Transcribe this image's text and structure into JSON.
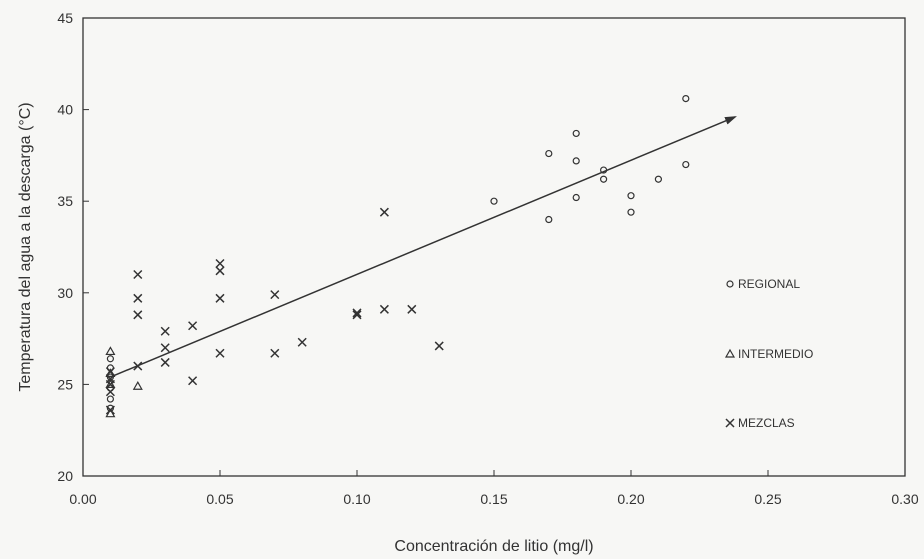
{
  "chart_data": {
    "type": "scatter",
    "xlabel": "Concentración de litio (mg/l)",
    "ylabel": "Temperatura del agua a la descarga (°C)",
    "xlim": [
      0,
      0.3
    ],
    "ylim": [
      20,
      45
    ],
    "x_ticks": [
      "0.00",
      "0.05",
      "0.10",
      "0.15",
      "0.20",
      "0.25",
      "0.30"
    ],
    "y_ticks": [
      "20",
      "25",
      "30",
      "35",
      "40",
      "45"
    ],
    "grid": false,
    "legend_position": "right",
    "series": [
      {
        "name": "REGIONAL",
        "marker": "circle",
        "points": [
          [
            0.15,
            35.0
          ],
          [
            0.17,
            37.6
          ],
          [
            0.17,
            34.0
          ],
          [
            0.18,
            38.7
          ],
          [
            0.18,
            37.2
          ],
          [
            0.18,
            35.2
          ],
          [
            0.19,
            36.7
          ],
          [
            0.19,
            36.2
          ],
          [
            0.2,
            35.3
          ],
          [
            0.2,
            34.4
          ],
          [
            0.21,
            36.2
          ],
          [
            0.22,
            40.6
          ],
          [
            0.22,
            37.0
          ],
          [
            0.01,
            26.4
          ],
          [
            0.01,
            25.9
          ],
          [
            0.01,
            25.4
          ],
          [
            0.01,
            24.8
          ],
          [
            0.01,
            24.2
          ],
          [
            0.01,
            23.7
          ]
        ]
      },
      {
        "name": "INTERMEDIO",
        "marker": "triangle",
        "points": [
          [
            0.01,
            26.8
          ],
          [
            0.01,
            25.6
          ],
          [
            0.01,
            25.0
          ],
          [
            0.01,
            23.4
          ],
          [
            0.02,
            24.9
          ]
        ]
      },
      {
        "name": "MEZCLAS",
        "marker": "cross",
        "points": [
          [
            0.01,
            25.7
          ],
          [
            0.01,
            25.3
          ],
          [
            0.01,
            25.0
          ],
          [
            0.01,
            24.6
          ],
          [
            0.01,
            23.6
          ],
          [
            0.02,
            31.0
          ],
          [
            0.02,
            29.7
          ],
          [
            0.02,
            28.8
          ],
          [
            0.02,
            26.0
          ],
          [
            0.03,
            27.9
          ],
          [
            0.03,
            27.0
          ],
          [
            0.03,
            26.2
          ],
          [
            0.04,
            28.2
          ],
          [
            0.04,
            25.2
          ],
          [
            0.05,
            31.6
          ],
          [
            0.05,
            31.2
          ],
          [
            0.05,
            29.7
          ],
          [
            0.05,
            26.7
          ],
          [
            0.07,
            29.9
          ],
          [
            0.07,
            26.7
          ],
          [
            0.08,
            27.3
          ],
          [
            0.1,
            28.9
          ],
          [
            0.1,
            28.8
          ],
          [
            0.11,
            34.4
          ],
          [
            0.11,
            29.1
          ],
          [
            0.12,
            29.1
          ],
          [
            0.13,
            27.1
          ]
        ]
      }
    ],
    "trend_arrow": {
      "from": [
        0.01,
        25.4
      ],
      "to": [
        0.238,
        39.6
      ]
    }
  }
}
